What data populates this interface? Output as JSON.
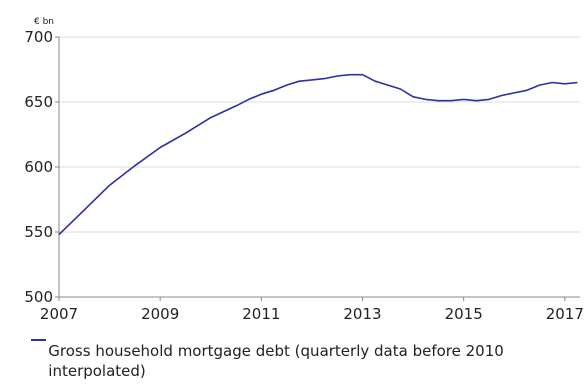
{
  "chart_data": {
    "type": "line",
    "unit_label": "€ bn",
    "ylim": [
      500,
      700
    ],
    "yticks": [
      500,
      550,
      600,
      650,
      700
    ],
    "xlim": [
      2007.0,
      2017.3
    ],
    "xticks": [
      2007,
      2009,
      2011,
      2013,
      2015,
      2017
    ],
    "grid": true,
    "legend_position": "bottom",
    "series": [
      {
        "name": "Gross household mortgage debt (quarterly data before 2010 interpolated)",
        "color": "#2b2fa8",
        "x": [
          2007.0,
          2007.5,
          2008.0,
          2008.5,
          2009.0,
          2009.5,
          2010.0,
          2010.5,
          2010.75,
          2011.0,
          2011.25,
          2011.5,
          2011.75,
          2012.0,
          2012.25,
          2012.5,
          2012.75,
          2013.0,
          2013.25,
          2013.5,
          2013.75,
          2014.0,
          2014.25,
          2014.5,
          2014.75,
          2015.0,
          2015.25,
          2015.5,
          2015.75,
          2016.0,
          2016.25,
          2016.5,
          2016.75,
          2017.0,
          2017.25
        ],
        "y": [
          548,
          567,
          586,
          601,
          615,
          626,
          638,
          647,
          652,
          656,
          659,
          663,
          666,
          667,
          668,
          670,
          671,
          671,
          666,
          663,
          660,
          654,
          652,
          651,
          651,
          652,
          651,
          652,
          655,
          657,
          659,
          663,
          665,
          664,
          665
        ]
      }
    ]
  }
}
